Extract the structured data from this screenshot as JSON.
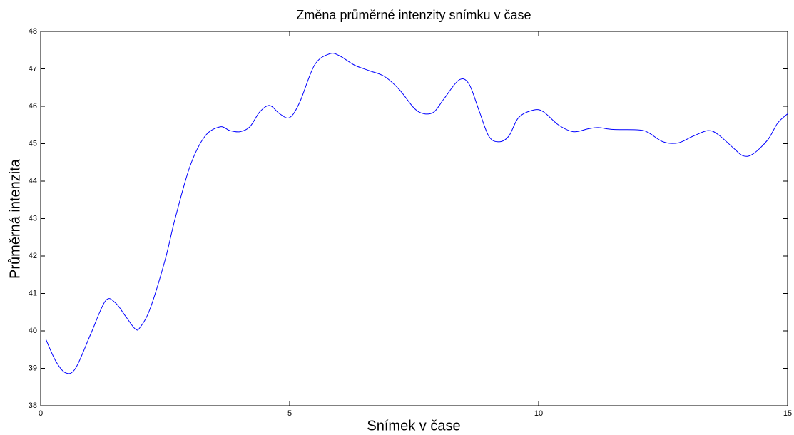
{
  "chart_data": {
    "type": "line",
    "title": "Změna průměrné intenzity snímku v čase",
    "x_label": "Snímek v čase",
    "y_label": "Průměrná intenzita",
    "x": [
      0.1,
      0.3,
      0.5,
      0.7,
      1.0,
      1.3,
      1.5,
      1.7,
      1.9,
      2.0,
      2.2,
      2.5,
      2.7,
      3.0,
      3.3,
      3.6,
      3.8,
      4.0,
      4.2,
      4.4,
      4.6,
      4.8,
      5.0,
      5.2,
      5.5,
      5.8,
      6.0,
      6.3,
      6.6,
      6.9,
      7.2,
      7.5,
      7.7,
      7.9,
      8.1,
      8.4,
      8.6,
      8.8,
      9.0,
      9.2,
      9.4,
      9.6,
      9.9,
      10.1,
      10.4,
      10.7,
      11.0,
      11.2,
      11.5,
      12.0,
      12.2,
      12.5,
      12.8,
      13.1,
      13.4,
      13.6,
      13.9,
      14.1,
      14.3,
      14.6,
      14.8,
      15.0
    ],
    "series": [
      {
        "color": "#0000ff",
        "values": [
          39.79,
          39.2,
          38.88,
          39.0,
          39.9,
          40.8,
          40.75,
          40.4,
          40.05,
          40.1,
          40.6,
          41.9,
          43.0,
          44.4,
          45.2,
          45.45,
          45.35,
          45.32,
          45.45,
          45.85,
          46.02,
          45.8,
          45.7,
          46.1,
          47.1,
          47.4,
          47.35,
          47.1,
          46.95,
          46.8,
          46.45,
          45.95,
          45.8,
          45.85,
          46.2,
          46.7,
          46.6,
          45.9,
          45.2,
          45.05,
          45.2,
          45.7,
          45.9,
          45.85,
          45.5,
          45.32,
          45.4,
          45.43,
          45.38,
          45.37,
          45.3,
          45.05,
          45.02,
          45.2,
          45.35,
          45.25,
          44.9,
          44.68,
          44.72,
          45.1,
          45.55,
          45.8
        ]
      }
    ],
    "xlim": [
      0,
      15
    ],
    "xticks": [
      0,
      5,
      10,
      15
    ],
    "ylim": [
      38,
      48
    ],
    "yticks": [
      38,
      39,
      40,
      41,
      42,
      43,
      44,
      45,
      46,
      47,
      48
    ],
    "grid": false
  }
}
